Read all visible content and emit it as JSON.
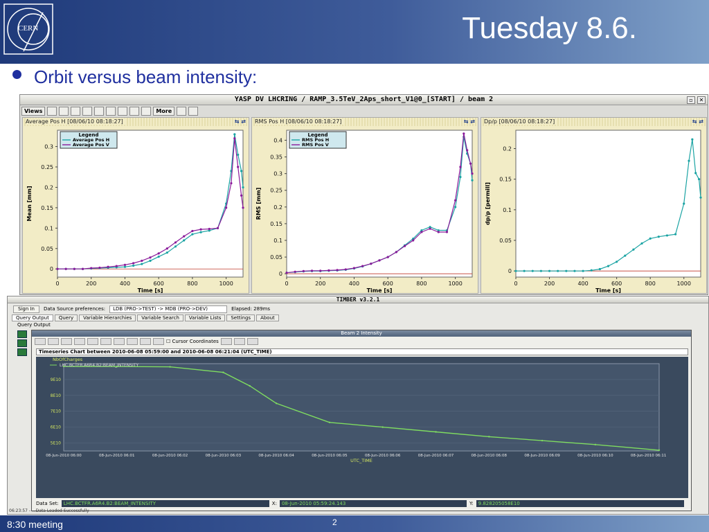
{
  "slide": {
    "title": "Tuesday 8.6.",
    "bullet": "Orbit versus beam intensity:",
    "footer_left": "8:30 meeting",
    "page_number": "2",
    "logo_text": "CERN"
  },
  "yasp": {
    "title": "YASP DV LHCRING / RAMP_3.5TeV_2Aps_short_V1@0_[START] / beam 2",
    "toolbar": {
      "views": "Views",
      "more": "More"
    },
    "panels": [
      {
        "header": "Average Pos H  [08/06/10 08:18:27]"
      },
      {
        "header": "RMS Pos H  [08/06/10 08:18:27]"
      },
      {
        "header": "Dp/p  [08/06/10 08:18:27]"
      }
    ]
  },
  "timber": {
    "title": "TIMBER v3.2.1",
    "sign_in": "Sign In",
    "ds_pref_label": "Data Source preferences:",
    "ds_pref_value": "LDB (PRO->TEST) -> MDB (PRO->DEV)",
    "elapsed": "Elapsed:  289ms",
    "tabs": [
      "Query Output",
      "Query",
      "Variable Hierarchies",
      "Variable Search",
      "Variable Lists",
      "Settings",
      "About"
    ],
    "query_output_label": "Query Output",
    "beam_window_title": "Beam 2 Intensity",
    "cursor_coords": "Cursor Coordinates",
    "chart_caption": "Timeseries Chart between 2010-06-08 05:59:00 and 2010-06-08 06:21:04 (UTC_TIME)",
    "dataset_label": "Data Set:",
    "dataset_value": "LHC.BCTFR.A6R4.B2:BEAM_INTENSITY",
    "x_label": "X:",
    "x_value": "08-Jun-2010 05:59:24.143",
    "y_label": "Y:",
    "y_value": "9.828205058E10",
    "status": "06:23:57 - ...Data Loaded Successfully"
  },
  "chart_data": [
    {
      "type": "line",
      "ylabel": "Mean [mm]",
      "xlabel": "Time [s]",
      "xlim": [
        0,
        1100
      ],
      "ylim": [
        -0.02,
        0.34
      ],
      "xticks": [
        0,
        200,
        400,
        600,
        800,
        1000
      ],
      "yticks": [
        0,
        0.05,
        0.1,
        0.15,
        0.2,
        0.25,
        0.3
      ],
      "legend_title": "Legend",
      "legend_position": "top-left",
      "series": [
        {
          "name": "Average Pos H",
          "color": "#1aa3a3",
          "x": [
            0,
            50,
            100,
            150,
            200,
            250,
            300,
            350,
            400,
            450,
            500,
            550,
            600,
            650,
            700,
            750,
            800,
            850,
            900,
            950,
            1000,
            1030,
            1050,
            1070,
            1090,
            1100
          ],
          "y": [
            0,
            0,
            0,
            0,
            0.001,
            0.002,
            0.003,
            0.004,
            0.005,
            0.008,
            0.012,
            0.02,
            0.03,
            0.04,
            0.055,
            0.07,
            0.085,
            0.09,
            0.094,
            0.1,
            0.16,
            0.24,
            0.33,
            0.28,
            0.24,
            0.2
          ]
        },
        {
          "name": "Average Pos V",
          "color": "#8a1a9a",
          "x": [
            0,
            50,
            100,
            150,
            200,
            250,
            300,
            350,
            400,
            450,
            500,
            550,
            600,
            650,
            700,
            750,
            800,
            850,
            900,
            950,
            1000,
            1030,
            1050,
            1070,
            1090,
            1100
          ],
          "y": [
            0,
            0,
            0,
            0,
            0.002,
            0.003,
            0.005,
            0.007,
            0.01,
            0.014,
            0.02,
            0.028,
            0.038,
            0.05,
            0.065,
            0.08,
            0.093,
            0.097,
            0.098,
            0.1,
            0.15,
            0.21,
            0.32,
            0.25,
            0.18,
            0.15
          ]
        }
      ]
    },
    {
      "type": "line",
      "ylabel": "RMS [mm]",
      "xlabel": "Time [s]",
      "xlim": [
        0,
        1100
      ],
      "ylim": [
        -0.01,
        0.43
      ],
      "xticks": [
        0,
        200,
        400,
        600,
        800,
        1000
      ],
      "yticks": [
        0,
        0.05,
        0.1,
        0.15,
        0.2,
        0.25,
        0.3,
        0.35,
        0.4
      ],
      "legend_title": "Legend",
      "legend_position": "top-left",
      "series": [
        {
          "name": "RMS Pos H",
          "color": "#1aa3a3",
          "x": [
            0,
            50,
            100,
            150,
            200,
            250,
            300,
            350,
            400,
            450,
            500,
            550,
            600,
            650,
            700,
            750,
            800,
            850,
            900,
            950,
            1000,
            1030,
            1050,
            1070,
            1090,
            1100
          ],
          "y": [
            0.003,
            0.005,
            0.007,
            0.008,
            0.008,
            0.009,
            0.01,
            0.012,
            0.016,
            0.022,
            0.03,
            0.04,
            0.05,
            0.065,
            0.085,
            0.105,
            0.13,
            0.14,
            0.13,
            0.13,
            0.2,
            0.29,
            0.41,
            0.36,
            0.33,
            0.28
          ]
        },
        {
          "name": "RMS Pos V",
          "color": "#8a1a9a",
          "x": [
            0,
            50,
            100,
            150,
            200,
            250,
            300,
            350,
            400,
            450,
            500,
            550,
            600,
            650,
            700,
            750,
            800,
            850,
            900,
            950,
            1000,
            1030,
            1050,
            1070,
            1090,
            1100
          ],
          "y": [
            0.003,
            0.006,
            0.008,
            0.009,
            0.009,
            0.01,
            0.011,
            0.013,
            0.017,
            0.023,
            0.03,
            0.04,
            0.05,
            0.065,
            0.083,
            0.1,
            0.125,
            0.135,
            0.125,
            0.125,
            0.22,
            0.32,
            0.42,
            0.37,
            0.33,
            0.3
          ]
        }
      ]
    },
    {
      "type": "line",
      "ylabel": "dp/p [permill]",
      "xlabel": "Time [s]",
      "xlim": [
        0,
        1100
      ],
      "ylim": [
        -0.01,
        0.23
      ],
      "xticks": [
        0,
        200,
        400,
        600,
        800,
        1000
      ],
      "yticks": [
        0,
        0.05,
        0.1,
        0.15,
        0.2
      ],
      "series": [
        {
          "name": "",
          "color": "#1aa3a3",
          "x": [
            0,
            50,
            100,
            150,
            200,
            250,
            300,
            350,
            400,
            450,
            500,
            550,
            600,
            650,
            700,
            750,
            800,
            850,
            900,
            950,
            1000,
            1030,
            1050,
            1070,
            1090,
            1100
          ],
          "y": [
            0,
            0,
            0,
            0,
            0,
            0,
            0,
            0,
            0,
            0.001,
            0.003,
            0.008,
            0.015,
            0.025,
            0.035,
            0.045,
            0.053,
            0.056,
            0.058,
            0.06,
            0.11,
            0.18,
            0.215,
            0.16,
            0.15,
            0.12
          ]
        }
      ]
    },
    {
      "type": "line",
      "title": "Beam 2 Intensity",
      "ylabel": "NbOfCharges",
      "xlabel": "UTC_TIME",
      "legend": [
        "LHC.BCTFR.A6R4.B2:BEAM_INTENSITY"
      ],
      "yticks": [
        "5E10",
        "6E10",
        "7E10",
        "8E10",
        "9E10"
      ],
      "xticks": [
        "08-Jun-2010 06:00",
        "08-Jun-2010 06:01",
        "08-Jun-2010 06:02",
        "08-Jun-2010 06:03",
        "08-Jun-2010 06:04",
        "08-Jun-2010 06:05",
        "08-Jun-2010 06:06",
        "08-Jun-2010 06:07",
        "08-Jun-2010 06:08",
        "08-Jun-2010 06:09",
        "08-Jun-2010 06:10",
        "08-Jun-2010 06:11"
      ],
      "x_minutes": [
        0,
        1,
        2,
        3,
        3.5,
        4,
        5,
        6,
        7,
        8,
        9,
        10,
        11.2
      ],
      "y": [
        98300000000.0,
        98200000000.0,
        98000000000.0,
        94500000000.0,
        86000000000.0,
        75000000000.0,
        63000000000.0,
        60000000000.0,
        57000000000.0,
        54000000000.0,
        51500000000.0,
        49000000000.0,
        45500000000.0
      ],
      "series": [
        {
          "name": "LHC.BCTFR.A6R4.B2:BEAM_INTENSITY",
          "color": "#7fdc60"
        }
      ]
    }
  ]
}
